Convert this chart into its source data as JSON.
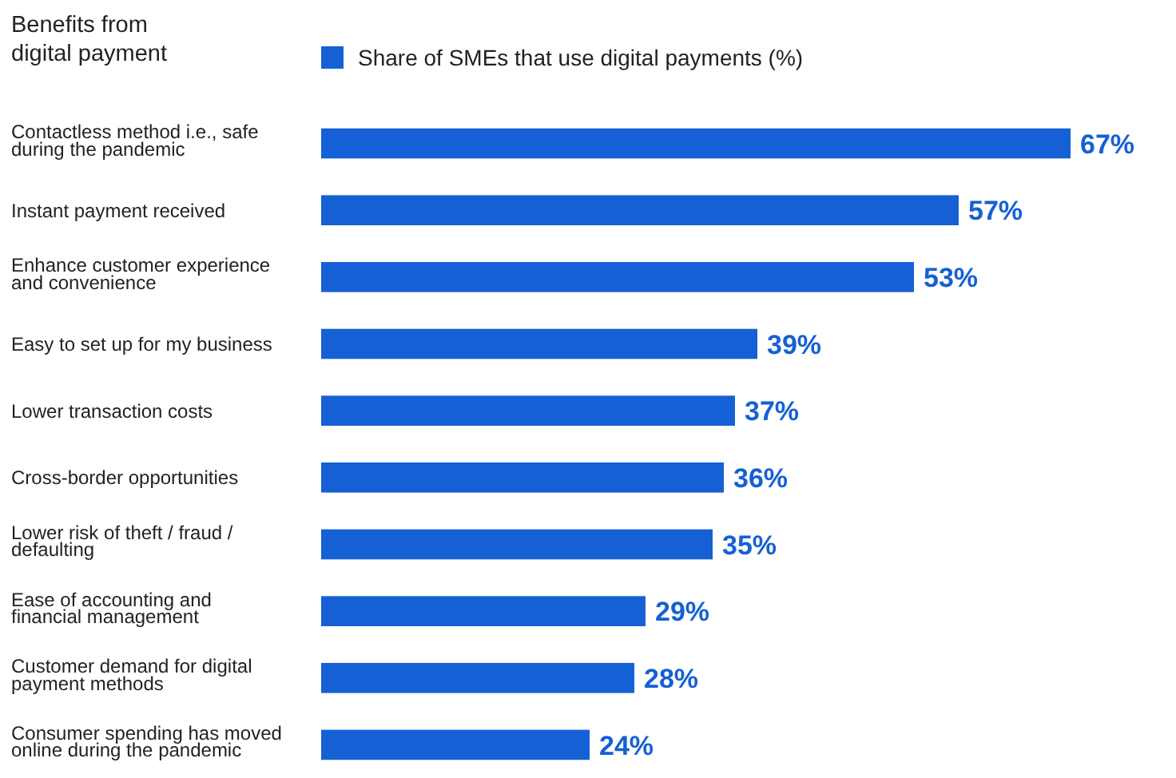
{
  "chart_data": {
    "type": "bar",
    "orientation": "horizontal",
    "ylabel": "Benefits from digital payment",
    "categories": [
      "Contactless method i.e., safe during the pandemic",
      "Instant payment received",
      "Enhance customer experience and convenience",
      "Easy to set up for my business",
      "Lower transaction costs",
      "Cross-border opportunities",
      "Lower risk of theft / fraud / defaulting",
      "Ease of accounting and financial management",
      "Customer demand for digital payment methods",
      "Consumer spending has moved online during the pandemic"
    ],
    "series": [
      {
        "name": "Share of SMEs that use digital payments (%)",
        "color": "#1560d4",
        "values": [
          67,
          57,
          53,
          39,
          37,
          36,
          35,
          29,
          28,
          24
        ],
        "value_labels": [
          "67%",
          "57%",
          "53%",
          "39%",
          "37%",
          "36%",
          "35%",
          "29%",
          "28%",
          "24%"
        ]
      }
    ],
    "legend": "top"
  }
}
